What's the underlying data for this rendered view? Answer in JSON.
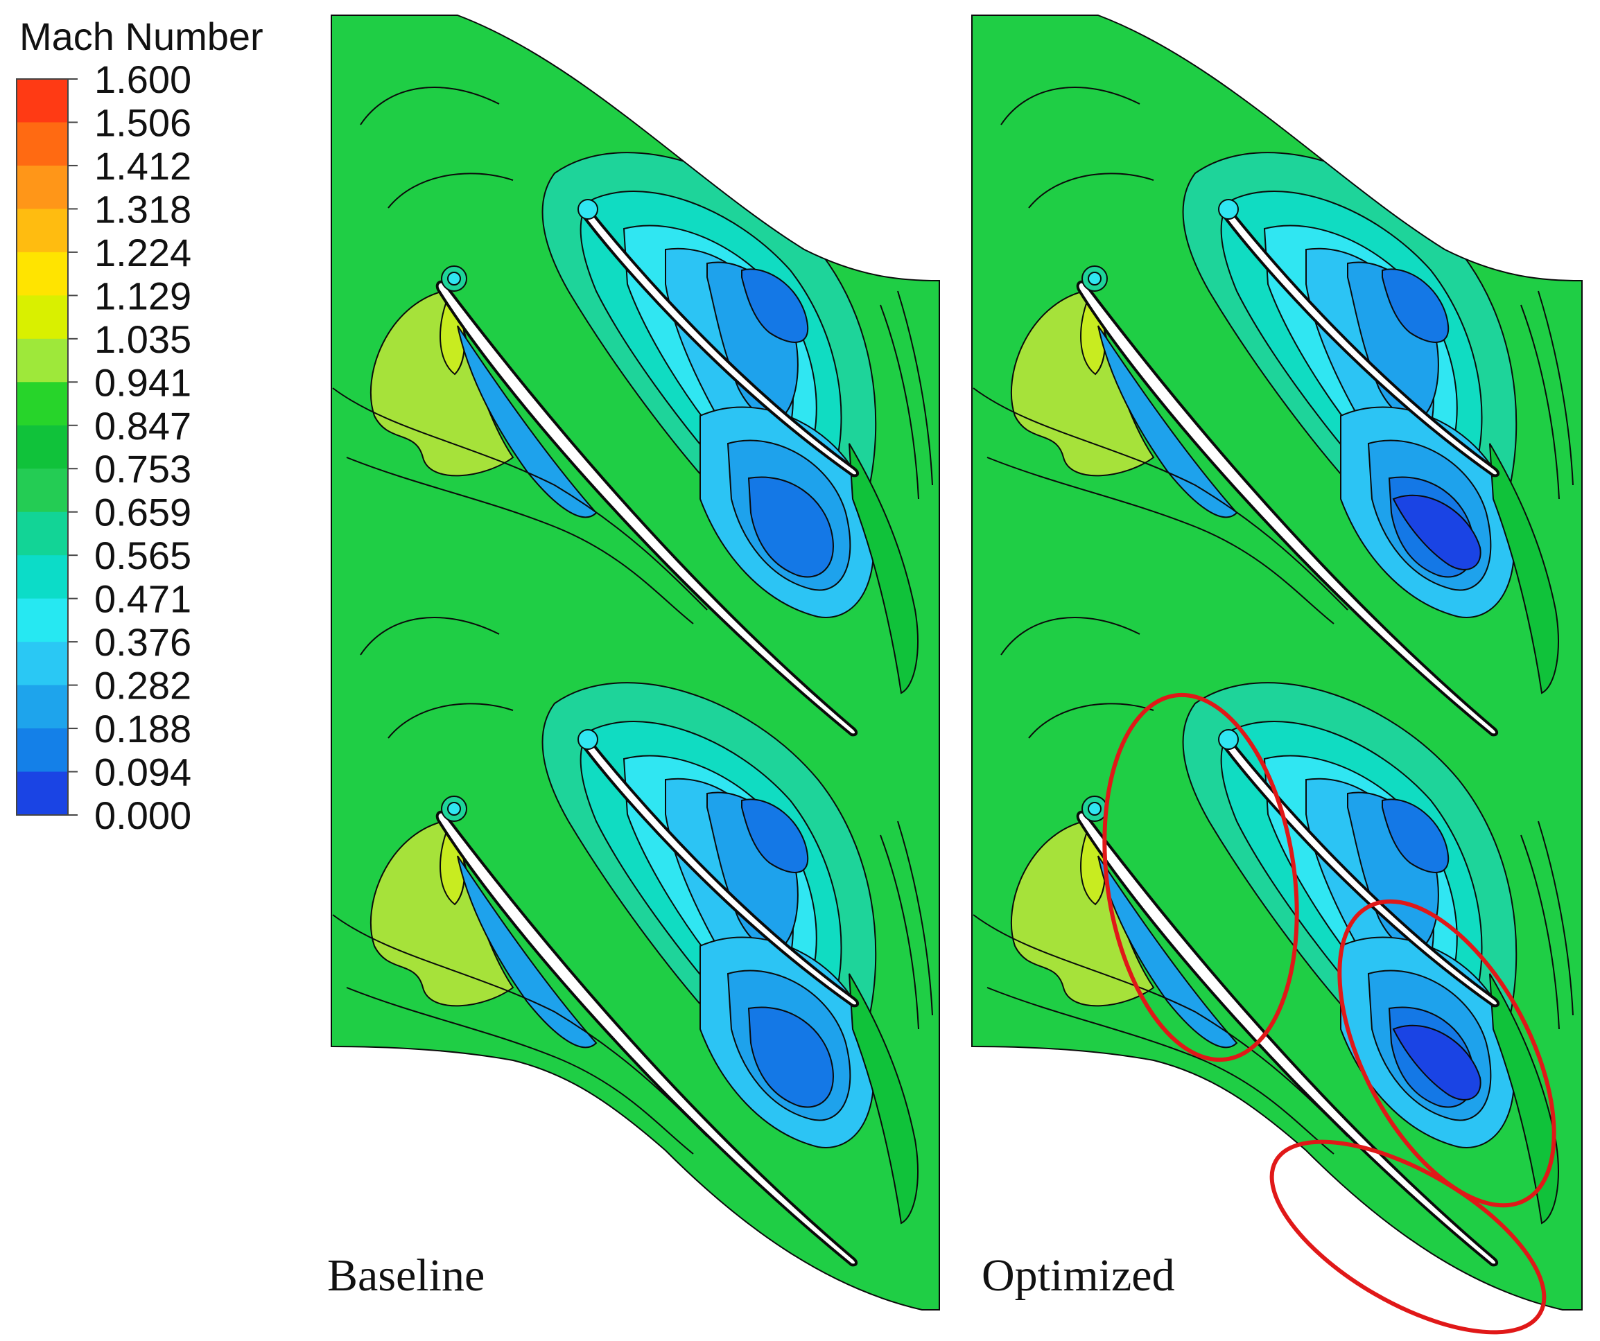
{
  "legend": {
    "title": "Mach Number",
    "ticks": [
      "1.600",
      "1.506",
      "1.412",
      "1.318",
      "1.224",
      "1.129",
      "1.035",
      "0.941",
      "0.847",
      "0.753",
      "0.659",
      "0.565",
      "0.471",
      "0.376",
      "0.282",
      "0.188",
      "0.094",
      "0.000"
    ],
    "band_colors": [
      "#ff3a14",
      "#ff6a12",
      "#ff9618",
      "#ffbc10",
      "#ffe400",
      "#d9f000",
      "#9ee83a",
      "#27d42a",
      "#10c23a",
      "#24cc54",
      "#12d496",
      "#0cdcc8",
      "#26e8f2",
      "#2ac8f4",
      "#1ea4ec",
      "#1480e8",
      "#1a44e4"
    ]
  },
  "panels": [
    {
      "label": "Baseline"
    },
    {
      "label": "Optimized"
    }
  ],
  "colors": {
    "annotation": "#e01818",
    "blade": "#ffffff",
    "contour_line": "#0a0a0a"
  }
}
